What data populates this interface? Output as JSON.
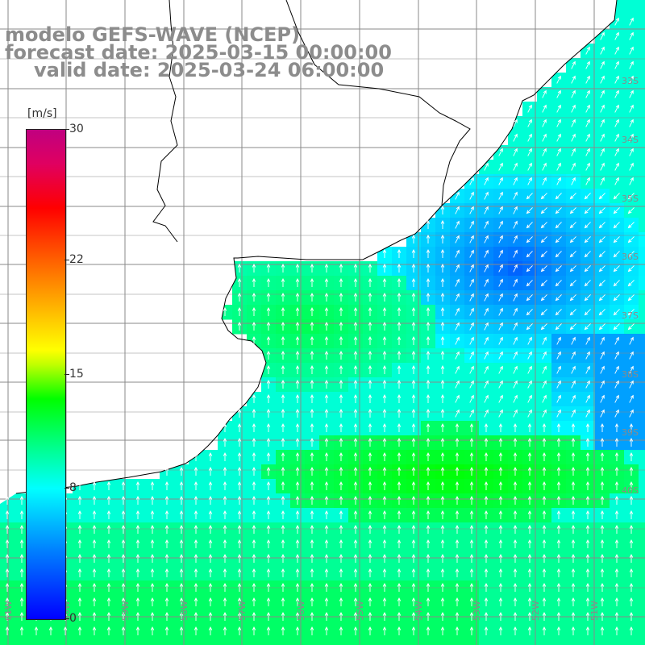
{
  "title": {
    "line1": "modelo GEFS-WAVE (NCEP)",
    "line2": "forecast date: 2025-03-15 00:00:00",
    "line3": "valid date: 2025-03-24 06:00:00"
  },
  "colorbar": {
    "unit": "[m/s]",
    "ticks": [
      "30",
      "22",
      "15",
      "8",
      "0"
    ],
    "tick_values": [
      30,
      22,
      15,
      8,
      0
    ],
    "min": 0,
    "max": 30,
    "colors": [
      "#0000ff",
      "#0080ff",
      "#00ffff",
      "#00ff80",
      "#00ff00",
      "#ffff00",
      "#ff8000",
      "#ff0000",
      "#c00080"
    ]
  },
  "map": {
    "lon_labels": [
      "61W",
      "60W",
      "59W",
      "58W",
      "57W",
      "56W",
      "55W",
      "54W",
      "53W",
      "52W",
      "51W"
    ],
    "lat_labels": [
      "33S",
      "34S",
      "35S",
      "36S",
      "37S",
      "38S",
      "39S",
      "40S"
    ],
    "land_color": "#ffffff",
    "coast_color": "#000000",
    "grid_color": "#8a8a8a",
    "arrow_color": "#ffffff"
  }
}
